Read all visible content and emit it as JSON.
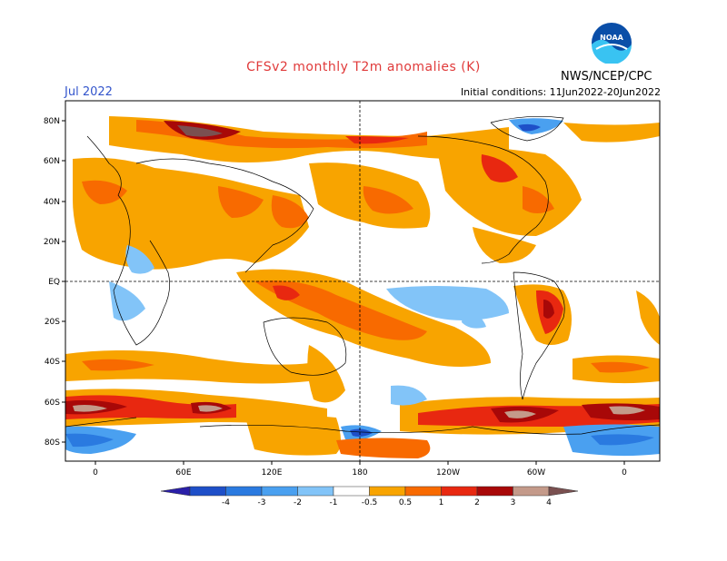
{
  "title": "CFSv2 monthly T2m anomalies (K)",
  "month_label": "Jul 2022",
  "initial_conditions": "Initial conditions: 11Jun2022-20Jun2022",
  "agency": "NWS/NCEP/CPC",
  "logo_text": "NOAA",
  "lat_labels": [
    "80N",
    "60N",
    "40N",
    "20N",
    "EQ",
    "20S",
    "40S",
    "60S",
    "80S"
  ],
  "lon_labels": [
    "0",
    "60E",
    "120E",
    "180",
    "120W",
    "60W",
    "0"
  ],
  "colorbar": {
    "levels": [
      "-4",
      "-3",
      "-2",
      "-1",
      "-0.5",
      "0.5",
      "1",
      "2",
      "3",
      "4"
    ],
    "colors": [
      "#2a1fa8",
      "#1e4fc8",
      "#2a7ae0",
      "#4aa0f0",
      "#82c4f8",
      "#ffffff",
      "#f8a400",
      "#f86a00",
      "#e82810",
      "#a80808",
      "#c49a8a",
      "#7a5050"
    ]
  }
}
